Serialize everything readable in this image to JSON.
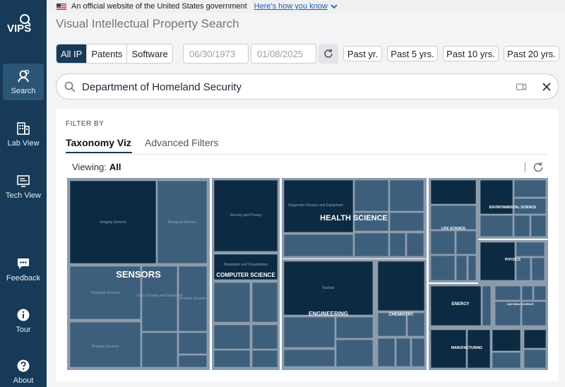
{
  "gov_banner": {
    "text": "An official website of the United States government",
    "link": "Here's how you know"
  },
  "app": {
    "logo_text": "VIPS",
    "title": "Visual Intellectual Property Search"
  },
  "sidebar": {
    "items": [
      {
        "label": "Search",
        "icon": "search-user-icon",
        "active": true
      },
      {
        "label": "Lab View",
        "icon": "building-icon"
      },
      {
        "label": "Tech View",
        "icon": "monitor-icon"
      },
      {
        "label": "Feedback",
        "icon": "chat-icon"
      },
      {
        "label": "Tour",
        "icon": "info-icon"
      },
      {
        "label": "About",
        "icon": "question-icon"
      }
    ]
  },
  "toolbar": {
    "types": [
      "All IP",
      "Patents",
      "Software"
    ],
    "selected_type": "All IP",
    "date_from": "06/30/1973",
    "date_to": "01/08/2025",
    "presets": [
      "Past yr.",
      "Past 5 yrs.",
      "Past 10 yrs.",
      "Past 20 yrs."
    ]
  },
  "search": {
    "value": "Department of Homeland Security"
  },
  "filter": {
    "heading": "FILTER BY",
    "tabs": [
      "Taxonomy Viz",
      "Advanced Filters"
    ],
    "active_tab": "Taxonomy Viz",
    "viewing_label": "Viewing:",
    "viewing_value": "All"
  },
  "treemap": {
    "colors": {
      "tile_dark": "#0c2b43",
      "tile_light": "#3e5f7c",
      "group_bg": "#8c9bab"
    },
    "groups": [
      {
        "label": "SENSORS",
        "subs": [
          "Imaging Sensors",
          "Biological Sensors",
          "Chemical Sensors",
          "Other Sensing and Integrated",
          "Acoustic Sensors",
          "Physical Sensors"
        ]
      },
      {
        "label": "COMPUTER SCIENCE",
        "subs": [
          "Security and Privacy",
          "Simulation and Visualization"
        ]
      },
      {
        "label": "HEALTH SCIENCE",
        "subs": [
          "Diagnostic Devices and Equipment",
          "Therapeutic Devices"
        ]
      },
      {
        "label": "ENGINEERING",
        "subs": [
          "Nuclear"
        ]
      },
      {
        "label": "CHEMISTRY",
        "subs": []
      },
      {
        "label": "LIFE SCIENCE",
        "subs": []
      },
      {
        "label": "ENVIRONMENTAL SCIENCE",
        "subs": []
      },
      {
        "label": "PHYSICS",
        "subs": []
      },
      {
        "label": "ENERGY",
        "subs": []
      },
      {
        "label": "NATURAL SCIENCE",
        "subs": []
      },
      {
        "label": "MANUFACTURING",
        "subs": []
      }
    ]
  }
}
